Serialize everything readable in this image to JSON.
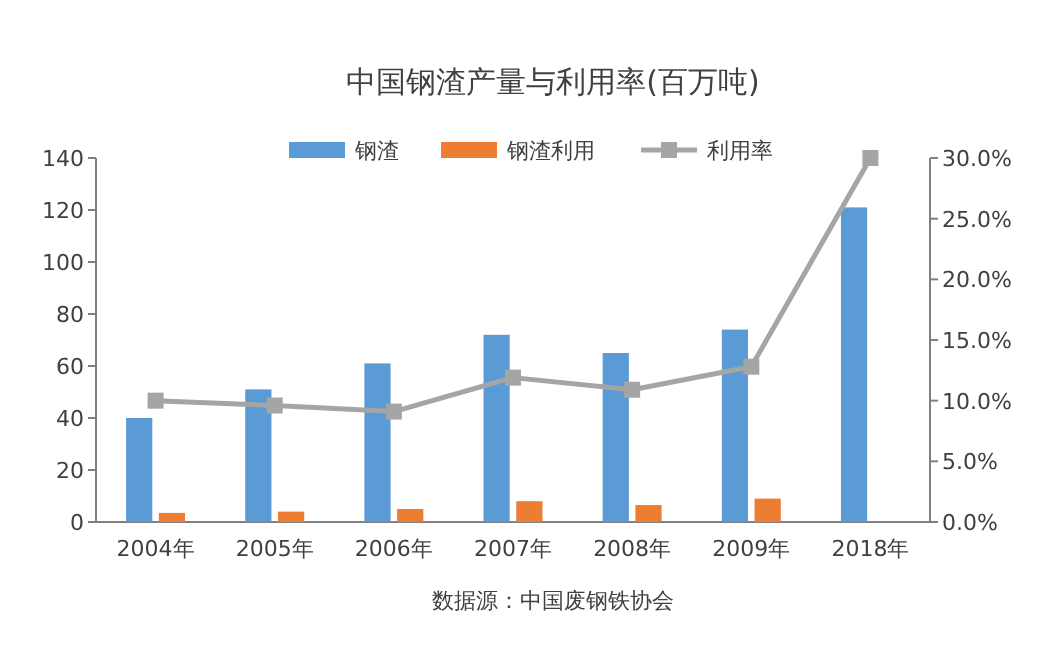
{
  "chart_data": {
    "type": "bar",
    "title": "中国钢渣产量与利用率(百万吨)",
    "categories": [
      "2004年",
      "2005年",
      "2006年",
      "2007年",
      "2008年",
      "2009年",
      "2018年"
    ],
    "series": [
      {
        "name": "钢渣",
        "color": "#5b9bd5",
        "values": [
          40,
          51,
          61,
          72,
          65,
          74,
          121
        ]
      },
      {
        "name": "钢渣利用",
        "color": "#ed7d31",
        "values": [
          3.5,
          4,
          5,
          8,
          6.5,
          9,
          null
        ]
      },
      {
        "name": "利用率",
        "type": "line",
        "axis": "y2",
        "color": "#a5a5a5",
        "marker": "square",
        "values": [
          10.0,
          9.6,
          9.1,
          11.9,
          10.9,
          12.8,
          30.0
        ]
      }
    ],
    "ylim": [
      0,
      140
    ],
    "yticks": [
      0,
      20,
      40,
      60,
      80,
      100,
      120,
      140
    ],
    "y2lim": [
      0,
      30
    ],
    "y2ticks": [
      {
        "value": 0,
        "label": "0.0%"
      },
      {
        "value": 5,
        "label": "5.0%"
      },
      {
        "value": 10,
        "label": "10.0%"
      },
      {
        "value": 15,
        "label": "15.0%"
      },
      {
        "value": 20,
        "label": "20.0%"
      },
      {
        "value": 25,
        "label": "25.0%"
      },
      {
        "value": 30,
        "label": "30.0%"
      }
    ],
    "legend": "top",
    "grid": false,
    "annotations": [
      "数据源：中国废钢铁协会"
    ]
  }
}
